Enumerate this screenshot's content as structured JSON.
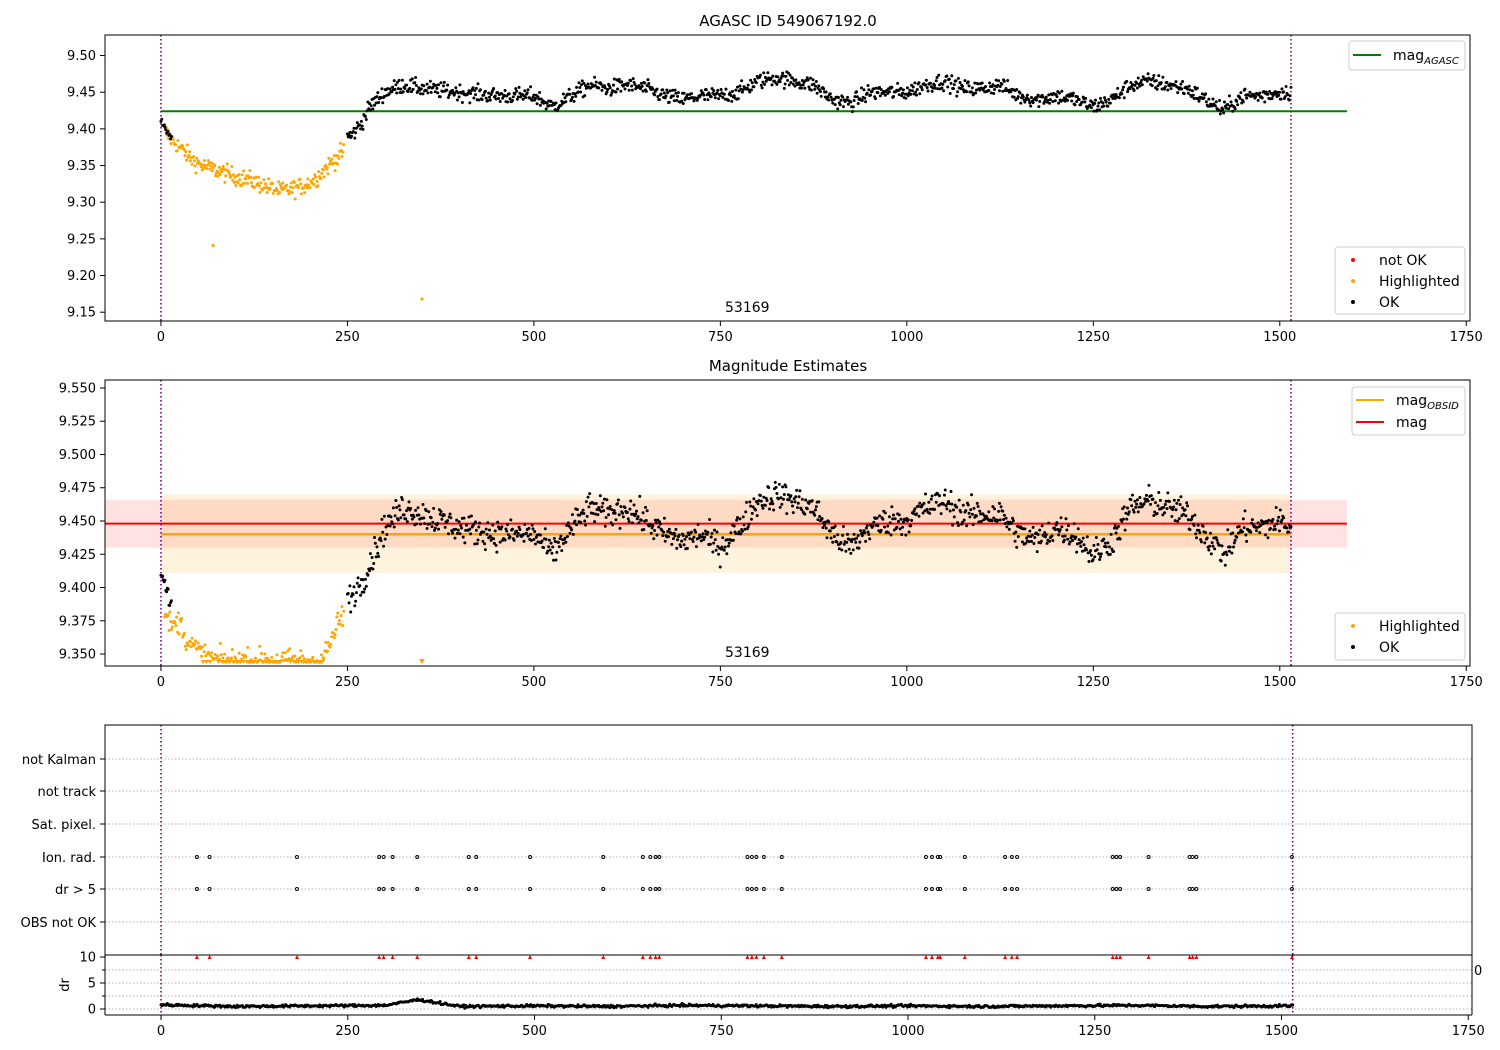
{
  "chart_data": [
    {
      "type": "scatter",
      "title": "AGASC ID 549067192.0",
      "xlim": [
        -75,
        1755
      ],
      "ylim": [
        9.138,
        9.528
      ],
      "xticks": [
        "0",
        "250",
        "500",
        "750",
        "1000",
        "1250",
        "1500",
        "1750"
      ],
      "xtick_values": [
        0,
        250,
        500,
        750,
        1000,
        1250,
        1500,
        1750
      ],
      "yticks": [
        "9.15",
        "9.20",
        "9.25",
        "9.30",
        "9.35",
        "9.40",
        "9.45",
        "9.50"
      ],
      "ytick_values": [
        9.15,
        9.2,
        9.25,
        9.3,
        9.35,
        9.4,
        9.45,
        9.5
      ],
      "obsid_boundaries": [
        0,
        1515
      ],
      "annotation": {
        "text": "53169",
        "x": 757,
        "y": 9.145
      },
      "reference_line": {
        "name": "mag",
        "subscript": "AGASC",
        "y": 9.424,
        "x_range": [
          -75,
          1590
        ],
        "color": "#008000"
      },
      "legend_upper": [
        {
          "label": "mag",
          "sub": "AGASC",
          "color": "#008000",
          "marker": "line"
        }
      ],
      "legend_lower": [
        {
          "label": "not OK",
          "color": "#ff0000",
          "marker": "dot"
        },
        {
          "label": "Highlighted",
          "color": "#ffa500",
          "marker": "dot"
        },
        {
          "label": "OK",
          "color": "#000000",
          "marker": "dot"
        }
      ],
      "series": [
        {
          "name": "Highlighted",
          "color": "#ffa500",
          "x": [
            0,
            10,
            25,
            40,
            55,
            70,
            85,
            100,
            120,
            140,
            160,
            175,
            190,
            205,
            220,
            235,
            245,
            70,
            350
          ],
          "y": [
            9.41,
            9.39,
            9.375,
            9.36,
            9.35,
            9.345,
            9.34,
            9.335,
            9.33,
            9.322,
            9.315,
            9.318,
            9.322,
            9.33,
            9.345,
            9.36,
            9.37,
            9.241,
            9.168
          ]
        },
        {
          "name": "OK",
          "color": "#000000",
          "x": [
            0,
            255,
            270,
            280,
            290,
            300,
            325,
            350,
            400,
            450,
            500,
            525,
            550,
            575,
            600,
            625,
            650,
            675,
            700,
            725,
            750,
            775,
            800,
            825,
            850,
            875,
            900,
            925,
            950,
            975,
            1000,
            1025,
            1050,
            1075,
            1100,
            1125,
            1150,
            1175,
            1200,
            1225,
            1250,
            1275,
            1300,
            1325,
            1350,
            1375,
            1400,
            1425,
            1450,
            1475,
            1500,
            1515
          ],
          "y": [
            9.41,
            9.39,
            9.41,
            9.43,
            9.44,
            9.45,
            9.46,
            9.455,
            9.45,
            9.445,
            9.445,
            9.43,
            9.445,
            9.46,
            9.455,
            9.46,
            9.455,
            9.445,
            9.44,
            9.445,
            9.445,
            9.45,
            9.465,
            9.47,
            9.465,
            9.46,
            9.44,
            9.435,
            9.45,
            9.45,
            9.45,
            9.46,
            9.465,
            9.455,
            9.455,
            9.46,
            9.445,
            9.44,
            9.445,
            9.44,
            9.43,
            9.44,
            9.46,
            9.465,
            9.46,
            9.455,
            9.44,
            9.425,
            9.445,
            9.445,
            9.45,
            9.45
          ]
        }
      ]
    },
    {
      "type": "scatter",
      "title": "Magnitude Estimates",
      "xlim": [
        -75,
        1755
      ],
      "ylim": [
        9.341,
        9.556
      ],
      "xticks": [
        "0",
        "250",
        "500",
        "750",
        "1000",
        "1250",
        "1500",
        "1750"
      ],
      "xtick_values": [
        0,
        250,
        500,
        750,
        1000,
        1250,
        1500,
        1750
      ],
      "yticks": [
        "9.350",
        "9.375",
        "9.400",
        "9.425",
        "9.450",
        "9.475",
        "9.500",
        "9.525",
        "9.550"
      ],
      "ytick_values": [
        9.35,
        9.375,
        9.4,
        9.425,
        9.45,
        9.475,
        9.5,
        9.525,
        9.55
      ],
      "obsid_boundaries": [
        0,
        1515
      ],
      "annotation": {
        "text": "53169",
        "x": 757,
        "y": 9.348
      },
      "bands": [
        {
          "name": "mag",
          "color": "#ff0000",
          "y": 9.448,
          "band": [
            9.43,
            9.466
          ],
          "x_range": [
            -75,
            1590
          ]
        },
        {
          "name": "mag",
          "subscript": "OBSID",
          "color": "#ffa500",
          "y": 9.44,
          "band": [
            9.411,
            9.47
          ],
          "x_range": [
            0,
            1515
          ]
        }
      ],
      "legend_upper": [
        {
          "label": "mag",
          "sub": "OBSID",
          "color": "#ffa500",
          "marker": "line"
        },
        {
          "label": "mag",
          "sub": "",
          "color": "#ff0000",
          "marker": "line"
        }
      ],
      "legend_lower": [
        {
          "label": "Highlighted",
          "color": "#ffa500",
          "marker": "dot"
        },
        {
          "label": "OK",
          "color": "#000000",
          "marker": "dot"
        }
      ],
      "series": [
        {
          "name": "Highlighted",
          "color": "#ffa500",
          "x": [
            5,
            15,
            25,
            35,
            45,
            55,
            65,
            80,
            100,
            130,
            160,
            190,
            215,
            225,
            235,
            245,
            350
          ],
          "y": [
            9.38,
            9.37,
            9.375,
            9.36,
            9.355,
            9.35,
            9.347,
            9.345,
            9.345,
            9.345,
            9.345,
            9.345,
            9.345,
            9.355,
            9.37,
            9.38,
            9.345
          ]
        },
        {
          "name": "OK",
          "color": "#000000",
          "x": [
            0,
            10,
            250,
            270,
            285,
            300,
            325,
            350,
            400,
            450,
            500,
            525,
            550,
            575,
            600,
            625,
            650,
            675,
            700,
            725,
            750,
            775,
            800,
            825,
            850,
            875,
            900,
            925,
            950,
            975,
            1000,
            1025,
            1050,
            1075,
            1100,
            1125,
            1150,
            1175,
            1200,
            1225,
            1250,
            1275,
            1300,
            1325,
            1350,
            1375,
            1400,
            1425,
            1450,
            1475,
            1500,
            1515
          ],
          "y": [
            9.41,
            9.39,
            9.39,
            9.405,
            9.425,
            9.445,
            9.46,
            9.455,
            9.445,
            9.44,
            9.44,
            9.425,
            9.445,
            9.46,
            9.455,
            9.46,
            9.45,
            9.44,
            9.435,
            9.44,
            9.43,
            9.445,
            9.465,
            9.47,
            9.465,
            9.46,
            9.44,
            9.43,
            9.445,
            9.45,
            9.45,
            9.46,
            9.465,
            9.455,
            9.455,
            9.455,
            9.44,
            9.435,
            9.445,
            9.44,
            9.425,
            9.435,
            9.46,
            9.465,
            9.46,
            9.455,
            9.44,
            9.425,
            9.445,
            9.445,
            9.45,
            9.445
          ]
        }
      ]
    },
    {
      "type": "scatter",
      "title": "",
      "xlim": [
        -75,
        1755
      ],
      "categories": [
        "OBS not OK",
        "dr > 5",
        "Ion. rad.",
        "Sat. pixel.",
        "not track",
        "not Kalman"
      ],
      "flag_x": [
        48,
        65,
        182,
        292,
        298,
        310,
        343,
        412,
        422,
        494,
        592,
        645,
        655,
        662,
        667,
        785,
        791,
        797,
        807,
        831,
        1024,
        1032,
        1040,
        1043,
        1076,
        1130,
        1139,
        1146,
        1274,
        1279,
        1284,
        1322,
        1377,
        1381,
        1386,
        1514
      ],
      "flags": [
        {
          "name": "dr > 5",
          "color": "#000000"
        },
        {
          "name": "Ion. rad.",
          "color": "#000000"
        }
      ]
    },
    {
      "type": "scatter",
      "title": "",
      "ylabel": "dr",
      "xlim": [
        -75,
        1755
      ],
      "ylim": [
        -1,
        11
      ],
      "xticks": [
        "0",
        "250",
        "500",
        "750",
        "1000",
        "1250",
        "1500",
        "1750"
      ],
      "xtick_values": [
        0,
        250,
        500,
        750,
        1000,
        1250,
        1500,
        1750
      ],
      "yticks": [
        "0",
        "5",
        "10"
      ],
      "ytick_values": [
        0,
        5,
        10
      ],
      "clipped_markers": {
        "name": "dr > 10",
        "color": "#ff0000",
        "y": 10
      },
      "series": [
        {
          "name": "dr",
          "color": "#000000",
          "x": [
            0,
            100,
            200,
            300,
            345,
            400,
            500,
            600,
            700,
            800,
            900,
            1000,
            1100,
            1200,
            1300,
            1400,
            1515
          ],
          "y": [
            0.8,
            0.5,
            0.6,
            0.7,
            1.8,
            0.5,
            0.6,
            0.5,
            0.7,
            0.6,
            0.5,
            0.6,
            0.5,
            0.6,
            0.7,
            0.5,
            0.6
          ]
        }
      ],
      "cut_label": "0"
    }
  ]
}
